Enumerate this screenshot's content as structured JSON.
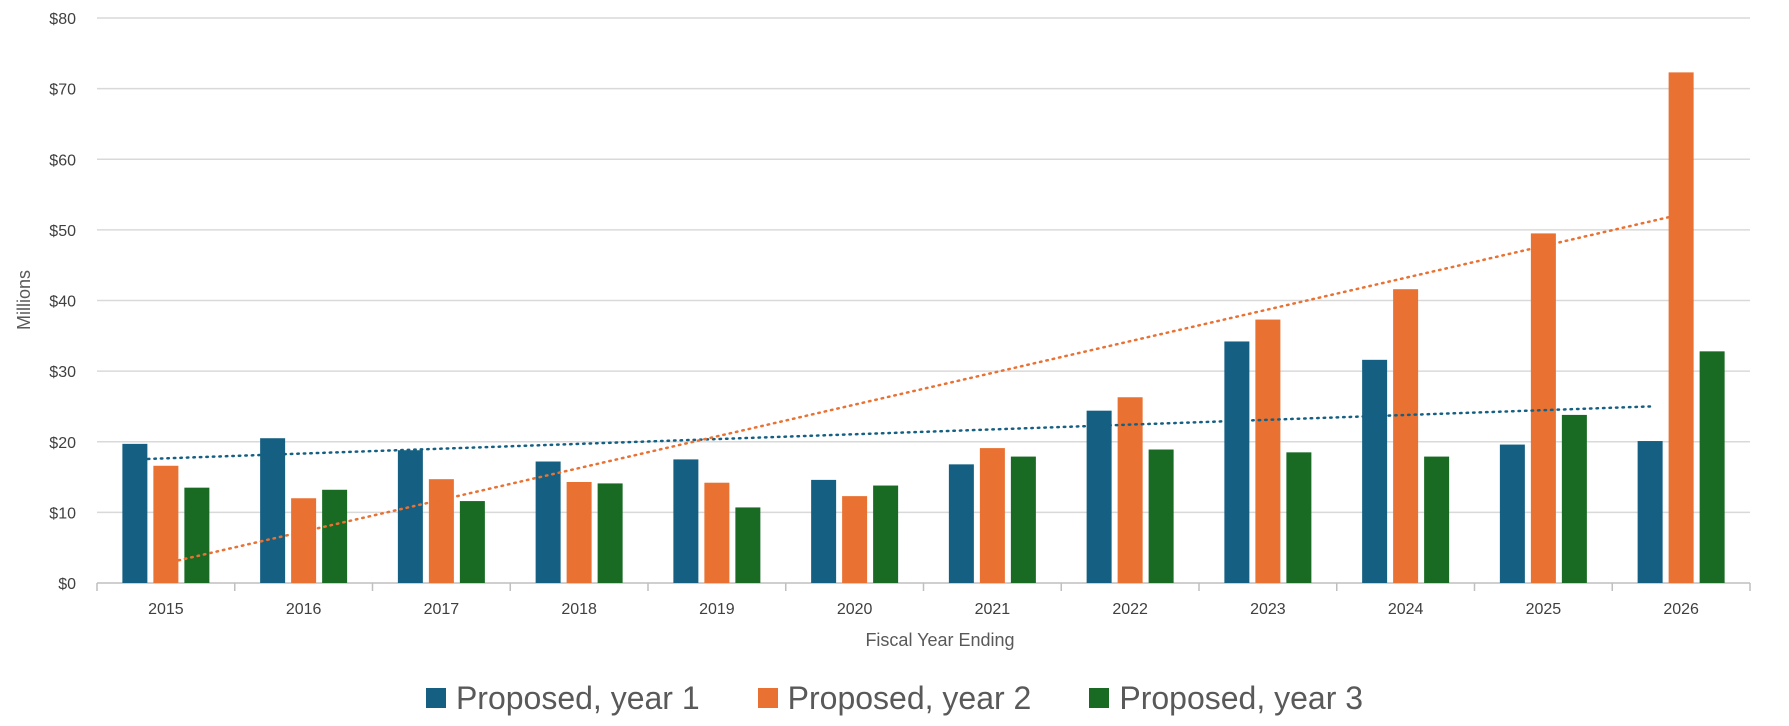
{
  "chart_data": {
    "type": "bar",
    "xlabel": "Fiscal Year Ending",
    "ylabel": "Millions",
    "ylim": [
      0,
      80
    ],
    "y_ticks": [
      "$0",
      "$10",
      "$20",
      "$30",
      "$40",
      "$50",
      "$60",
      "$70",
      "$80"
    ],
    "y_tick_values": [
      0,
      10,
      20,
      30,
      40,
      50,
      60,
      70,
      80
    ],
    "categories": [
      "2015",
      "2016",
      "2017",
      "2018",
      "2019",
      "2020",
      "2021",
      "2022",
      "2023",
      "2024",
      "2025",
      "2026"
    ],
    "series": [
      {
        "name": "Proposed, year 1",
        "color": "#156082",
        "values": [
          19.7,
          20.5,
          18.8,
          17.2,
          17.5,
          14.6,
          16.8,
          24.4,
          34.2,
          31.6,
          19.6,
          20.1
        ]
      },
      {
        "name": "Proposed, year 2",
        "color": "#E97132",
        "values": [
          16.6,
          12.0,
          14.7,
          14.3,
          14.2,
          12.3,
          19.1,
          26.3,
          37.3,
          41.6,
          49.5,
          72.3
        ]
      },
      {
        "name": "Proposed, year 3",
        "color": "#196B24",
        "values": [
          13.5,
          13.2,
          11.6,
          14.1,
          10.7,
          13.8,
          17.9,
          18.9,
          18.5,
          17.9,
          23.8,
          32.8
        ]
      }
    ],
    "trendlines": [
      {
        "series": "Proposed, year 1",
        "type": "linear",
        "style": "dotted",
        "color": "#156082",
        "start": 17.5,
        "end": 25.0
      },
      {
        "series": "Proposed, year 2",
        "type": "linear",
        "style": "dotted",
        "color": "#E97132",
        "start": 2.8,
        "end": 52.2
      }
    ],
    "grid": true,
    "legend_position": "bottom"
  }
}
